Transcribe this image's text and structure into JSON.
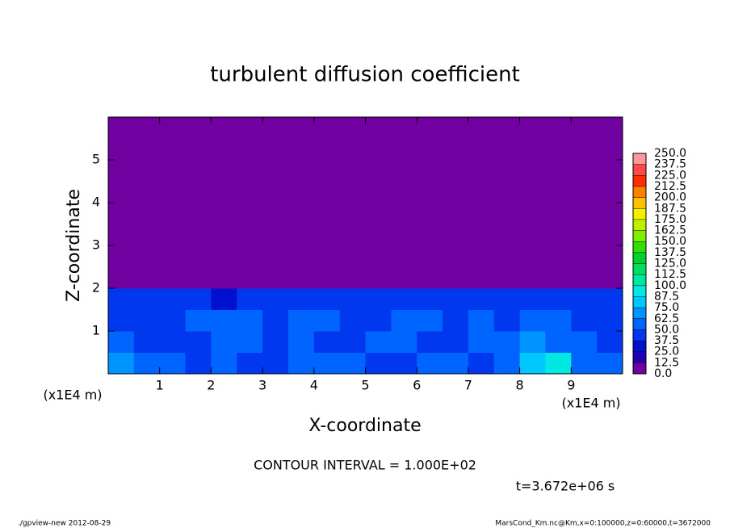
{
  "chart_data": {
    "type": "contour",
    "title": "turbulent diffusion coefficient",
    "xlabel": "X-coordinate",
    "ylabel": "Z-coordinate",
    "x_unit": "(x1E4 m)",
    "y_unit": "(x1E4 m)",
    "xlim": [
      0,
      10
    ],
    "ylim": [
      0,
      6
    ],
    "xticks": [
      1,
      2,
      3,
      4,
      5,
      6,
      7,
      8,
      9
    ],
    "yticks": [
      1,
      2,
      3,
      4,
      5
    ],
    "field": [
      [
        70,
        60,
        50,
        45,
        55,
        40,
        45,
        55,
        60,
        50,
        45,
        40,
        50,
        55,
        45,
        50,
        85,
        90,
        60,
        55
      ],
      [
        50,
        45,
        40,
        45,
        55,
        60,
        40,
        50,
        45,
        40,
        55,
        50,
        45,
        40,
        50,
        55,
        70,
        60,
        50,
        45
      ],
      [
        45,
        40,
        45,
        50,
        55,
        50,
        45,
        50,
        55,
        45,
        40,
        50,
        55,
        45,
        50,
        45,
        50,
        55,
        45,
        40
      ],
      [
        40,
        45,
        40,
        45,
        35,
        45,
        40,
        45,
        45,
        40,
        45,
        40,
        45,
        45,
        45,
        45,
        40,
        45,
        45,
        40
      ],
      [
        0,
        0,
        0,
        0,
        0,
        0,
        0,
        0,
        0,
        0,
        0,
        0,
        0,
        0,
        0,
        0,
        0,
        0,
        0,
        0
      ],
      [
        0,
        0,
        0,
        0,
        0,
        0,
        0,
        0,
        0,
        0,
        0,
        0,
        0,
        0,
        0,
        0,
        0,
        0,
        0,
        0
      ],
      [
        0,
        0,
        0,
        0,
        0,
        0,
        0,
        0,
        0,
        0,
        0,
        0,
        0,
        0,
        0,
        0,
        0,
        0,
        0,
        0
      ],
      [
        0,
        0,
        0,
        0,
        0,
        0,
        0,
        0,
        0,
        0,
        0,
        0,
        0,
        0,
        0,
        0,
        0,
        0,
        0,
        0
      ],
      [
        0,
        0,
        0,
        0,
        0,
        0,
        0,
        0,
        0,
        0,
        0,
        0,
        0,
        0,
        0,
        0,
        0,
        0,
        0,
        0
      ],
      [
        0,
        0,
        0,
        0,
        0,
        0,
        0,
        0,
        0,
        0,
        0,
        0,
        0,
        0,
        0,
        0,
        0,
        0,
        0,
        0
      ],
      [
        0,
        0,
        0,
        0,
        0,
        0,
        0,
        0,
        0,
        0,
        0,
        0,
        0,
        0,
        0,
        0,
        0,
        0,
        0,
        0
      ],
      [
        0,
        0,
        0,
        0,
        0,
        0,
        0,
        0,
        0,
        0,
        0,
        0,
        0,
        0,
        0,
        0,
        0,
        0,
        0,
        0
      ]
    ],
    "levels": [
      {
        "value": 0,
        "label": "0.0"
      },
      {
        "value": 12.5,
        "label": "12.5"
      },
      {
        "value": 25,
        "label": "25.0"
      },
      {
        "value": 37.5,
        "label": "37.5"
      },
      {
        "value": 50,
        "label": "50.0"
      },
      {
        "value": 62.5,
        "label": "62.5"
      },
      {
        "value": 75,
        "label": "75.0"
      },
      {
        "value": 87.5,
        "label": "87.5"
      },
      {
        "value": 100,
        "label": "100.0"
      },
      {
        "value": 112.5,
        "label": "112.5"
      },
      {
        "value": 125,
        "label": "125.0"
      },
      {
        "value": 137.5,
        "label": "137.5"
      },
      {
        "value": 150,
        "label": "150.0"
      },
      {
        "value": 162.5,
        "label": "162.5"
      },
      {
        "value": 175,
        "label": "175.0"
      },
      {
        "value": 187.5,
        "label": "187.5"
      },
      {
        "value": 200,
        "label": "200.0"
      },
      {
        "value": 212.5,
        "label": "212.5"
      },
      {
        "value": 225,
        "label": "225.0"
      },
      {
        "value": 237.5,
        "label": "237.5"
      },
      {
        "value": 250,
        "label": "250.0"
      }
    ],
    "colors": [
      "#7000a0",
      "#2000b0",
      "#0010d0",
      "#0038f0",
      "#0064ff",
      "#0094ff",
      "#00c8ff",
      "#00e8e0",
      "#00e8a0",
      "#00e060",
      "#00d030",
      "#30e000",
      "#80f000",
      "#c0f000",
      "#f0f000",
      "#ffc000",
      "#ff8000",
      "#ff3000",
      "#ff4848",
      "#ff9898"
    ],
    "contour_interval": "CONTOUR INTERVAL = 1.000E+02",
    "time": "t=3.672e+06 s",
    "footer_left": "./gpview-new  2012-08-29",
    "footer_right": "MarsCond_Km.nc@Km,x=0:100000,z=0:60000,t=3672000"
  }
}
